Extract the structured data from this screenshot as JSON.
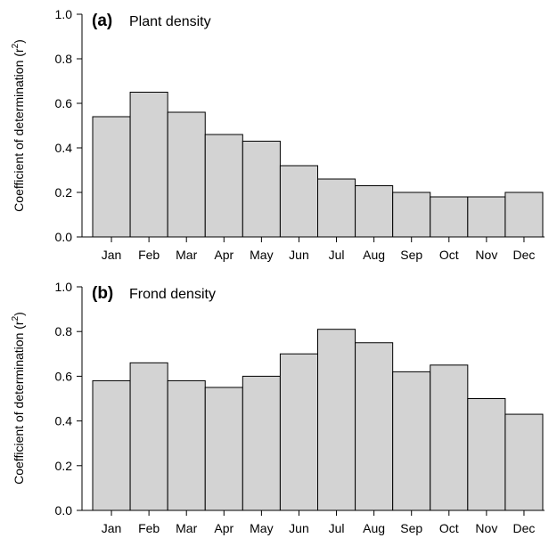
{
  "chart_data": [
    {
      "type": "bar",
      "panel": "(a)",
      "title": "Plant density",
      "ylabel": "Coefficient of determination (r²)",
      "ylabel_main": "Coefficient of determination (r",
      "ylabel_sup": "2",
      "ylabel_end": ")",
      "xlabel": "",
      "ylim": [
        0,
        1.0
      ],
      "yticks": [
        "0.0",
        "0.2",
        "0.4",
        "0.6",
        "0.8",
        "1.0"
      ],
      "categories": [
        "Jan",
        "Feb",
        "Mar",
        "Apr",
        "May",
        "Jun",
        "Jul",
        "Aug",
        "Sep",
        "Oct",
        "Nov",
        "Dec"
      ],
      "values": [
        0.54,
        0.65,
        0.56,
        0.46,
        0.43,
        0.32,
        0.26,
        0.23,
        0.2,
        0.18,
        0.18,
        0.2
      ],
      "grid": false,
      "bar_color": "#d3d3d3"
    },
    {
      "type": "bar",
      "panel": "(b)",
      "title": "Frond density",
      "ylabel": "Coefficient of determination (r²)",
      "ylabel_main": "Coefficient of determination (r",
      "ylabel_sup": "2",
      "ylabel_end": ")",
      "xlabel": "",
      "ylim": [
        0,
        1.0
      ],
      "yticks": [
        "0.0",
        "0.2",
        "0.4",
        "0.6",
        "0.8",
        "1.0"
      ],
      "categories": [
        "Jan",
        "Feb",
        "Mar",
        "Apr",
        "May",
        "Jun",
        "Jul",
        "Aug",
        "Sep",
        "Oct",
        "Nov",
        "Dec"
      ],
      "values": [
        0.58,
        0.66,
        0.58,
        0.55,
        0.6,
        0.7,
        0.81,
        0.75,
        0.62,
        0.65,
        0.5,
        0.43
      ],
      "grid": false,
      "bar_color": "#d3d3d3"
    }
  ]
}
